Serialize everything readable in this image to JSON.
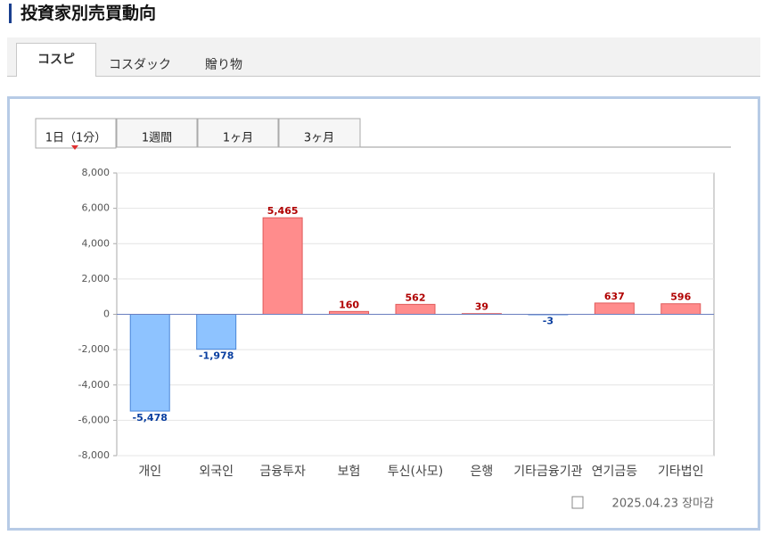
{
  "header": {
    "title": "投資家別売買動向"
  },
  "tabs": [
    "コスピ",
    "コスダック",
    "贈り物"
  ],
  "period_tabs": [
    "1日（1分）",
    "1週間",
    "1ヶ月",
    "3ヶ月"
  ],
  "chart_data": {
    "type": "bar",
    "categories": [
      "개인",
      "외국인",
      "금융투자",
      "보험",
      "투신(사모)",
      "은행",
      "기타금융기관",
      "연기금등",
      "기타법인"
    ],
    "values": [
      -5478,
      -1978,
      5465,
      160,
      562,
      39,
      -3,
      637,
      596
    ],
    "value_labels": [
      "-5,478",
      "-1,978",
      "5,465",
      "160",
      "562",
      "39",
      "-3",
      "637",
      "596"
    ],
    "positive_color": "#ff8c8c",
    "negative_color": "#8ec3ff",
    "ylim": [
      -8000,
      8000
    ],
    "yticks": [
      {
        "value": -8000,
        "label": "-8,000"
      },
      {
        "value": -6000,
        "label": "-6,000"
      },
      {
        "value": -4000,
        "label": "-4,000"
      },
      {
        "value": -2000,
        "label": "-2,000"
      },
      0,
      {
        "value": 2000,
        "label": "2,000"
      },
      {
        "value": 4000,
        "label": "4,000"
      },
      {
        "value": 6000,
        "label": "6,000"
      },
      {
        "value": 8000,
        "label": "8,000"
      }
    ],
    "grid": true
  },
  "footer": {
    "date": "2025.04.23 장마감"
  }
}
